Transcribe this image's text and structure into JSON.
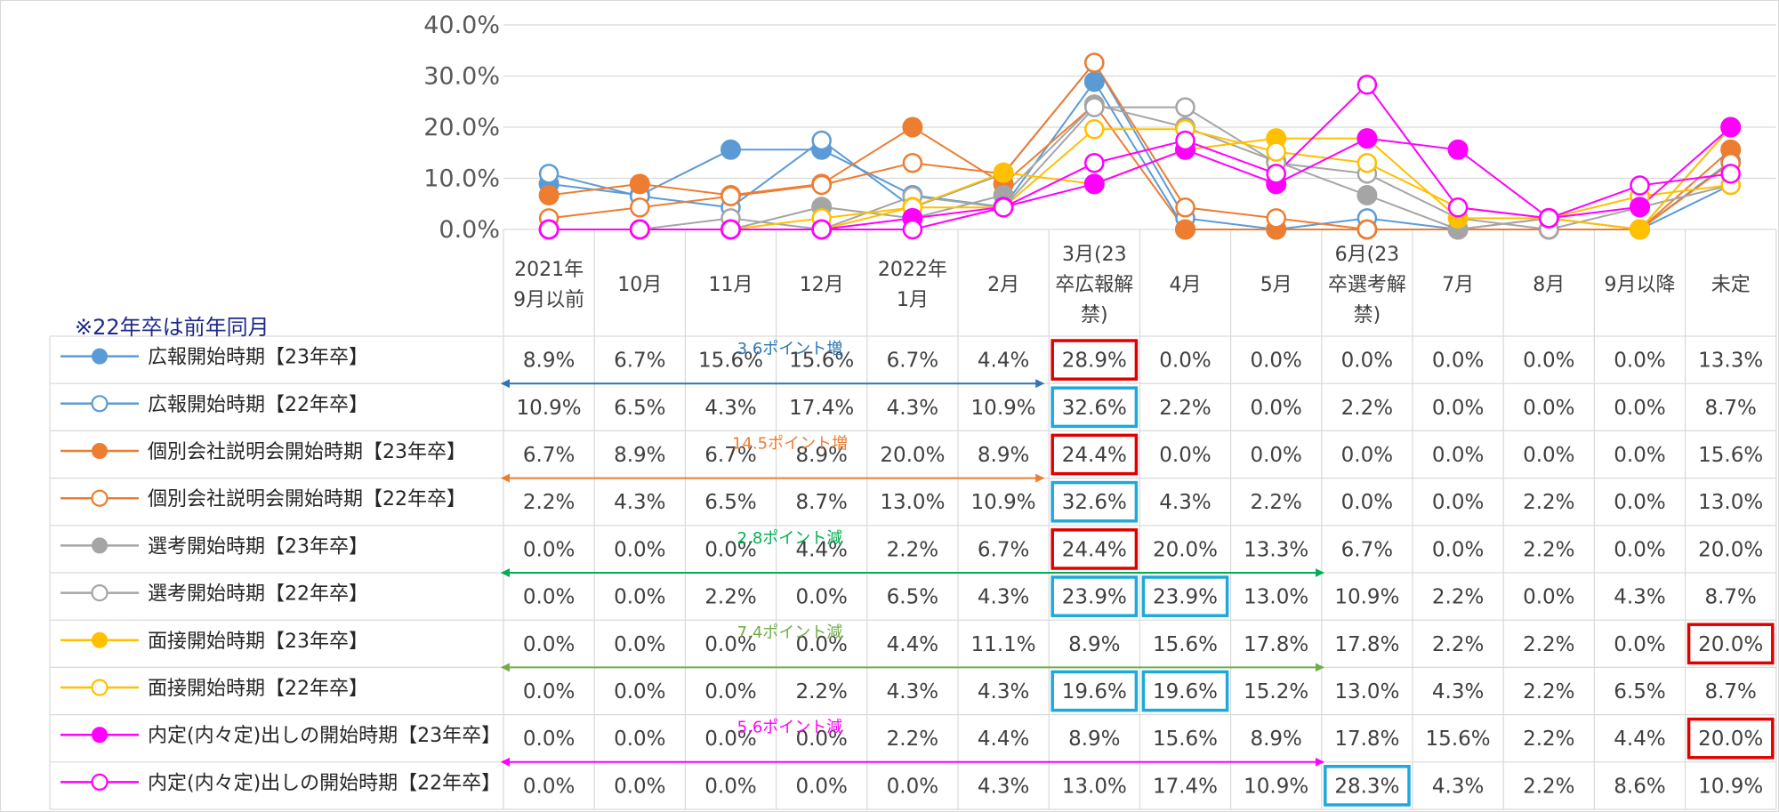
{
  "chart_data": {
    "type": "line",
    "categories": [
      [
        "2021年",
        "9月以前"
      ],
      [
        "10月"
      ],
      [
        "11月"
      ],
      [
        "12月"
      ],
      [
        "2022年",
        "1月"
      ],
      [
        "2月"
      ],
      [
        "3月(23",
        "卒広報解",
        "禁)"
      ],
      [
        "4月"
      ],
      [
        "5月"
      ],
      [
        "6月(23",
        "卒選考解",
        "禁)"
      ],
      [
        "7月"
      ],
      [
        "8月"
      ],
      [
        "9月以降"
      ],
      [
        "未定"
      ]
    ],
    "ylim": [
      0,
      40
    ],
    "yticks": [
      "0.0%",
      "10.0%",
      "20.0%",
      "30.0%",
      "40.0%"
    ],
    "grid": true,
    "series": [
      {
        "name": "広報開始時期【23年卒】",
        "color": "#5b9bd5",
        "marker": "filled",
        "values": [
          8.9,
          6.7,
          15.6,
          15.6,
          6.7,
          4.4,
          28.9,
          0.0,
          0.0,
          0.0,
          0.0,
          0.0,
          0.0,
          13.3
        ],
        "labels": [
          "8.9%",
          "6.7%",
          "15.6%",
          "15.6%",
          "6.7%",
          "4.4%",
          "28.9%",
          "0.0%",
          "0.0%",
          "0.0%",
          "0.0%",
          "0.0%",
          "0.0%",
          "13.3%"
        ]
      },
      {
        "name": "広報開始時期【22年卒】",
        "color": "#5b9bd5",
        "marker": "hollow",
        "values": [
          10.9,
          6.5,
          4.3,
          17.4,
          4.3,
          10.9,
          32.6,
          2.2,
          0.0,
          2.2,
          0.0,
          0.0,
          0.0,
          8.7
        ],
        "labels": [
          "10.9%",
          "6.5%",
          "4.3%",
          "17.4%",
          "4.3%",
          "10.9%",
          "32.6%",
          "2.2%",
          "0.0%",
          "2.2%",
          "0.0%",
          "0.0%",
          "0.0%",
          "8.7%"
        ]
      },
      {
        "name": "個別会社説明会開始時期【23年卒】",
        "color": "#ed7d31",
        "marker": "filled",
        "values": [
          6.7,
          8.9,
          6.7,
          8.9,
          20.0,
          8.9,
          24.4,
          0.0,
          0.0,
          0.0,
          0.0,
          0.0,
          0.0,
          15.6
        ],
        "labels": [
          "6.7%",
          "8.9%",
          "6.7%",
          "8.9%",
          "20.0%",
          "8.9%",
          "24.4%",
          "0.0%",
          "0.0%",
          "0.0%",
          "0.0%",
          "0.0%",
          "0.0%",
          "15.6%"
        ]
      },
      {
        "name": "個別会社説明会開始時期【22年卒】",
        "color": "#ed7d31",
        "marker": "hollow",
        "values": [
          2.2,
          4.3,
          6.5,
          8.7,
          13.0,
          10.9,
          32.6,
          4.3,
          2.2,
          0.0,
          0.0,
          2.2,
          0.0,
          13.0
        ],
        "labels": [
          "2.2%",
          "4.3%",
          "6.5%",
          "8.7%",
          "13.0%",
          "10.9%",
          "32.6%",
          "4.3%",
          "2.2%",
          "0.0%",
          "0.0%",
          "2.2%",
          "0.0%",
          "13.0%"
        ]
      },
      {
        "name": "選考開始時期【23年卒】",
        "color": "#a5a5a5",
        "marker": "filled",
        "values": [
          0.0,
          0.0,
          0.0,
          4.4,
          2.2,
          6.7,
          24.4,
          20.0,
          13.3,
          6.7,
          0.0,
          2.2,
          0.0,
          20.0
        ],
        "labels": [
          "0.0%",
          "0.0%",
          "0.0%",
          "4.4%",
          "2.2%",
          "6.7%",
          "24.4%",
          "20.0%",
          "13.3%",
          "6.7%",
          "0.0%",
          "2.2%",
          "0.0%",
          "20.0%"
        ]
      },
      {
        "name": "選考開始時期【22年卒】",
        "color": "#a5a5a5",
        "marker": "hollow",
        "values": [
          0.0,
          0.0,
          2.2,
          0.0,
          6.5,
          4.3,
          23.9,
          23.9,
          13.0,
          10.9,
          2.2,
          0.0,
          4.3,
          8.7
        ],
        "labels": [
          "0.0%",
          "0.0%",
          "2.2%",
          "0.0%",
          "6.5%",
          "4.3%",
          "23.9%",
          "23.9%",
          "13.0%",
          "10.9%",
          "2.2%",
          "0.0%",
          "4.3%",
          "8.7%"
        ]
      },
      {
        "name": "面接開始時期【23年卒】",
        "color": "#ffc000",
        "marker": "filled",
        "values": [
          0.0,
          0.0,
          0.0,
          0.0,
          4.4,
          11.1,
          8.9,
          15.6,
          17.8,
          17.8,
          2.2,
          2.2,
          0.0,
          20.0
        ],
        "labels": [
          "0.0%",
          "0.0%",
          "0.0%",
          "0.0%",
          "4.4%",
          "11.1%",
          "8.9%",
          "15.6%",
          "17.8%",
          "17.8%",
          "2.2%",
          "2.2%",
          "0.0%",
          "20.0%"
        ]
      },
      {
        "name": "面接開始時期【22年卒】",
        "color": "#ffc000",
        "marker": "hollow",
        "values": [
          0.0,
          0.0,
          0.0,
          2.2,
          4.3,
          4.3,
          19.6,
          19.6,
          15.2,
          13.0,
          4.3,
          2.2,
          6.5,
          8.7
        ],
        "labels": [
          "0.0%",
          "0.0%",
          "0.0%",
          "2.2%",
          "4.3%",
          "4.3%",
          "19.6%",
          "19.6%",
          "15.2%",
          "13.0%",
          "4.3%",
          "2.2%",
          "6.5%",
          "8.7%"
        ]
      },
      {
        "name": "内定(内々定)出しの開始時期【23年卒】",
        "color": "#ff00ff",
        "marker": "filled",
        "values": [
          0.0,
          0.0,
          0.0,
          0.0,
          2.2,
          4.4,
          8.9,
          15.6,
          8.9,
          17.8,
          15.6,
          2.2,
          4.4,
          20.0
        ],
        "labels": [
          "0.0%",
          "0.0%",
          "0.0%",
          "0.0%",
          "2.2%",
          "4.4%",
          "8.9%",
          "15.6%",
          "8.9%",
          "17.8%",
          "15.6%",
          "2.2%",
          "4.4%",
          "20.0%"
        ]
      },
      {
        "name": "内定(内々定)出しの開始時期【22年卒】",
        "color": "#ff00ff",
        "marker": "hollow",
        "values": [
          0.0,
          0.0,
          0.0,
          0.0,
          0.0,
          4.3,
          13.0,
          17.4,
          10.9,
          28.3,
          4.3,
          2.2,
          8.6,
          10.9
        ],
        "labels": [
          "0.0%",
          "0.0%",
          "0.0%",
          "0.0%",
          "0.0%",
          "4.3%",
          "13.0%",
          "17.4%",
          "10.9%",
          "28.3%",
          "4.3%",
          "2.2%",
          "8.6%",
          "10.9%"
        ]
      }
    ],
    "note": "※22年卒は前年同月",
    "annotations": [
      {
        "text": "3.6ポイント増",
        "color": "#2e75b6",
        "row": 0,
        "from_col": 0,
        "to_col": 6
      },
      {
        "text": "14.5ポイント増",
        "color": "#ed7d31",
        "row": 2,
        "from_col": 0,
        "to_col": 6
      },
      {
        "text": "2.8ポイント減",
        "color": "#00b050",
        "row": 4,
        "from_col": 0,
        "to_col": 9
      },
      {
        "text": "7.4ポイント減",
        "color": "#70ad47",
        "row": 6,
        "from_col": 0,
        "to_col": 9
      },
      {
        "text": "5.6ポイント減",
        "color": "#ff00ff",
        "row": 8,
        "from_col": 0,
        "to_col": 9
      }
    ],
    "highlights": [
      {
        "row": 0,
        "col": 6,
        "color": "#e00000"
      },
      {
        "row": 1,
        "col": 6,
        "color": "#1fa8dc"
      },
      {
        "row": 2,
        "col": 6,
        "color": "#e00000"
      },
      {
        "row": 3,
        "col": 6,
        "color": "#1fa8dc"
      },
      {
        "row": 4,
        "col": 6,
        "color": "#e00000"
      },
      {
        "row": 5,
        "col": 6,
        "color": "#1fa8dc"
      },
      {
        "row": 5,
        "col": 7,
        "color": "#1fa8dc"
      },
      {
        "row": 6,
        "col": 13,
        "color": "#e00000"
      },
      {
        "row": 7,
        "col": 6,
        "color": "#1fa8dc"
      },
      {
        "row": 7,
        "col": 7,
        "color": "#1fa8dc"
      },
      {
        "row": 8,
        "col": 13,
        "color": "#e00000"
      },
      {
        "row": 9,
        "col": 9,
        "color": "#1fa8dc"
      }
    ]
  }
}
